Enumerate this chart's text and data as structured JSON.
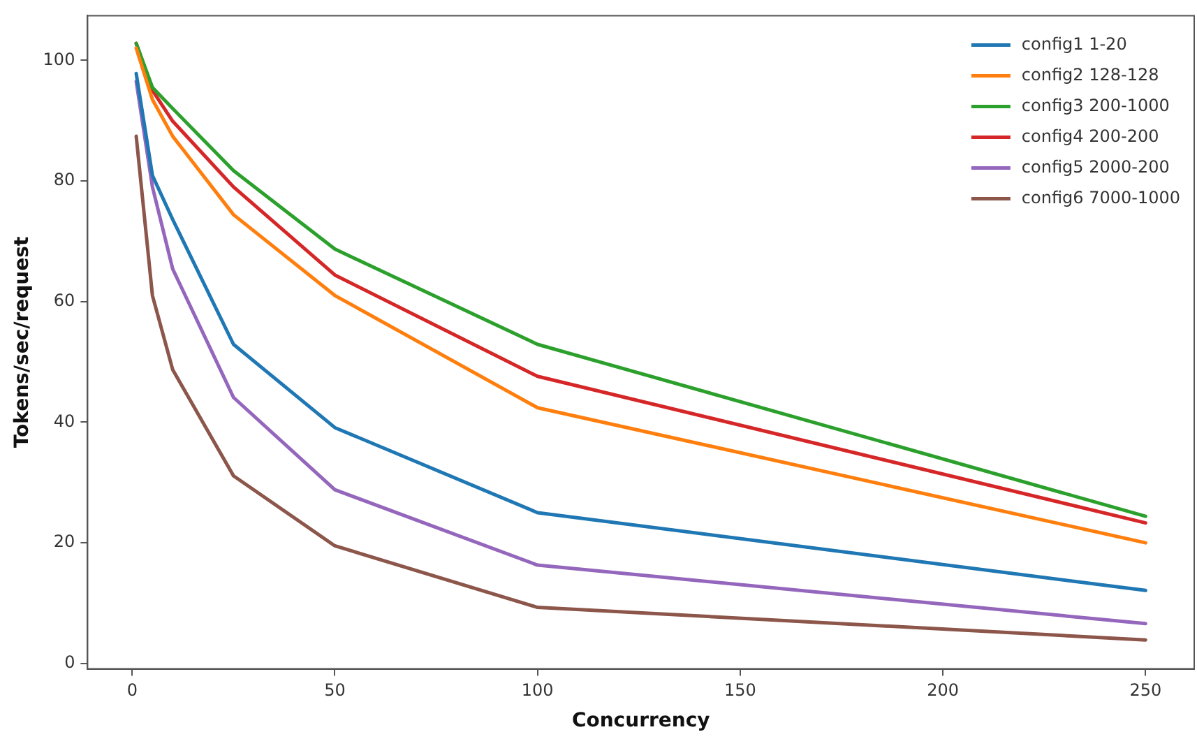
{
  "chart_data": {
    "type": "line",
    "xlabel": "Concurrency",
    "ylabel": "Tokens/sec/request",
    "x": [
      1,
      5,
      10,
      25,
      50,
      100,
      250
    ],
    "series": [
      {
        "name": "config1 1-20",
        "color": "#1f77b4",
        "values": [
          97.8,
          80.9,
          73.6,
          52.9,
          39.1,
          25.0,
          12.1
        ]
      },
      {
        "name": "config2 128-128",
        "color": "#ff7f0e",
        "values": [
          102,
          93.5,
          87.4,
          74.4,
          61.0,
          42.4,
          20.0
        ]
      },
      {
        "name": "config3 200-1000",
        "color": "#2ca02c",
        "values": [
          102.8,
          95.5,
          92.0,
          81.7,
          68.7,
          52.9,
          24.4
        ]
      },
      {
        "name": "config4 200-200",
        "color": "#d62728",
        "values": [
          102.8,
          95,
          89.9,
          79.0,
          64.4,
          47.6,
          23.3
        ]
      },
      {
        "name": "config5 2000-200",
        "color": "#9467bd",
        "values": [
          96.5,
          79,
          65.4,
          44.1,
          28.8,
          16.3,
          6.6
        ]
      },
      {
        "name": "config6 7000-1000",
        "color": "#8c564b",
        "values": [
          87.4,
          61.0,
          48.7,
          31.1,
          19.5,
          9.3,
          3.9
        ]
      }
    ],
    "xlim": [
      -11,
      262
    ],
    "xticks": [
      0,
      50,
      100,
      150,
      200,
      250
    ],
    "ylim": [
      -0.9,
      107.4
    ],
    "yticks": [
      0,
      20,
      40,
      60,
      80,
      100
    ],
    "grid": false,
    "legend": "top right",
    "marker": "none",
    "line_style": "solid"
  }
}
